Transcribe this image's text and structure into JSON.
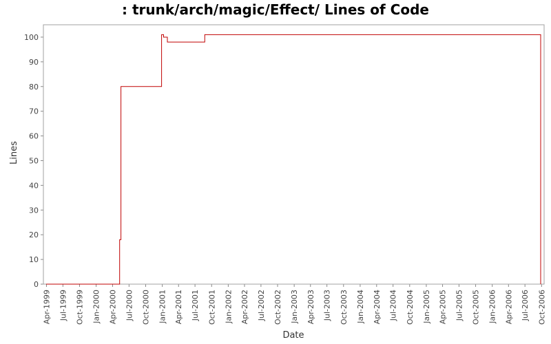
{
  "chart_data": {
    "type": "line",
    "title": ": trunk/arch/magic/Effect/ Lines of Code",
    "xlabel": "Date",
    "ylabel": "Lines",
    "ylim": [
      0,
      105
    ],
    "xlim": [
      "1999-03-15",
      "2006-10-15"
    ],
    "y_ticks": [
      0,
      10,
      20,
      30,
      40,
      50,
      60,
      70,
      80,
      90,
      100
    ],
    "y_tick_labels": [
      "0",
      "10",
      "20",
      "30",
      "40",
      "50",
      "60",
      "70",
      "80",
      "90",
      "100"
    ],
    "x_ticks": [
      "1999-04-01",
      "1999-07-01",
      "1999-10-01",
      "2000-01-01",
      "2000-04-01",
      "2000-07-01",
      "2000-10-01",
      "2001-01-01",
      "2001-04-01",
      "2001-07-01",
      "2001-10-01",
      "2002-01-01",
      "2002-04-01",
      "2002-07-01",
      "2002-10-01",
      "2003-01-01",
      "2003-04-01",
      "2003-07-01",
      "2003-10-01",
      "2004-01-01",
      "2004-04-01",
      "2004-07-01",
      "2004-10-01",
      "2005-01-01",
      "2005-04-01",
      "2005-07-01",
      "2005-10-01",
      "2006-01-01",
      "2006-04-01",
      "2006-07-01",
      "2006-10-01"
    ],
    "x_tick_labels": [
      "Apr-1999",
      "Jul-1999",
      "Oct-1999",
      "Jan-2000",
      "Apr-2000",
      "Jul-2000",
      "Oct-2000",
      "Jan-2001",
      "Apr-2001",
      "Jul-2001",
      "Oct-2001",
      "Jan-2002",
      "Apr-2002",
      "Jul-2002",
      "Oct-2002",
      "Jan-2003",
      "Apr-2003",
      "Jul-2003",
      "Oct-2003",
      "Jan-2004",
      "Apr-2004",
      "Jul-2004",
      "Oct-2004",
      "Jan-2005",
      "Apr-2005",
      "Jul-2005",
      "Oct-2005",
      "Jan-2006",
      "Apr-2006",
      "Jul-2006",
      "Oct-2006"
    ],
    "step": true,
    "grid": false,
    "legend": "none",
    "series": [
      {
        "color": "#c00000",
        "points": [
          [
            "1999-03-30",
            0
          ],
          [
            "2000-05-10",
            18
          ],
          [
            "2000-05-17",
            80
          ],
          [
            "2000-12-28",
            101
          ],
          [
            "2001-01-08",
            100
          ],
          [
            "2001-01-29",
            98
          ],
          [
            "2001-08-24",
            101
          ],
          [
            "2006-09-26",
            0
          ]
        ]
      }
    ]
  }
}
